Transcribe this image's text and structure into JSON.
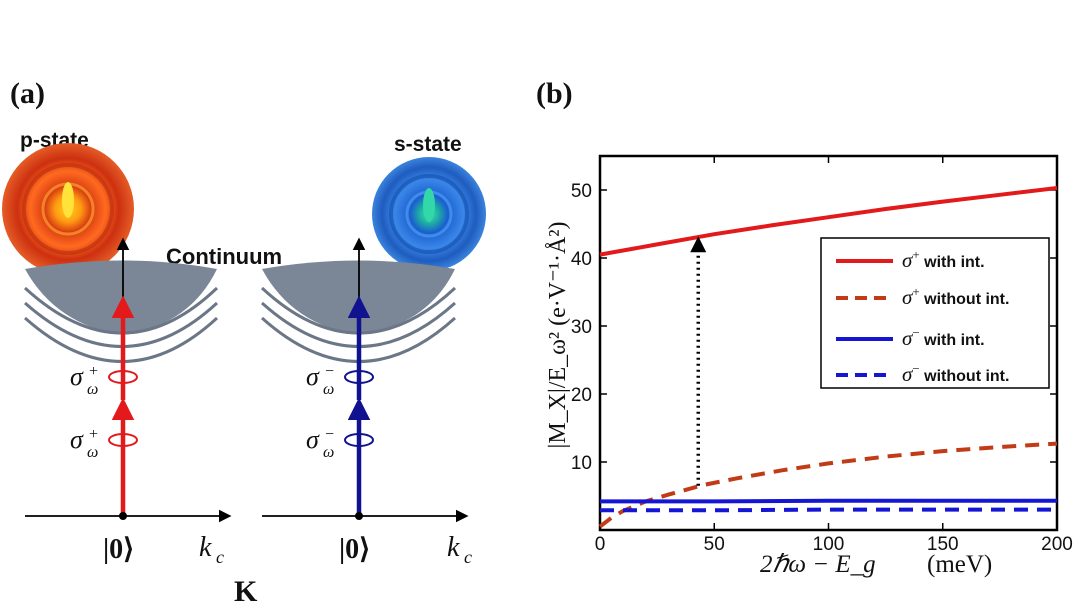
{
  "panel_a": {
    "label": "(a)",
    "p_state_label": "p-state",
    "s_state_label": "s-state",
    "continuum_label": "Continuum",
    "left_ket": "|0⟩",
    "right_ket": "|0⟩",
    "kc_label": "k",
    "kc_sub": "c",
    "valley_label": "K",
    "sigma_plus_upper": "σ",
    "sigma_plus_sup": "+",
    "sigma_omega_sub": "ω",
    "sigma_minus_sup": "−",
    "colors": {
      "red": "#e3191c",
      "blue": "#10128f",
      "continuum": "#7b8797",
      "pstate": "#e8401a",
      "sstate": "#1f74d6"
    }
  },
  "panel_b": {
    "label": "(b)",
    "ylabel": "|M_X|/E_ω² (e·V⁻¹·Å²)",
    "xlabel_main": "2ℏω − E_g",
    "xlabel_unit": "(meV)"
  },
  "chart_data": {
    "type": "line",
    "xlim": [
      0,
      200
    ],
    "ylim": [
      0,
      55
    ],
    "xticks": [
      "0",
      "50",
      "100",
      "150",
      "200"
    ],
    "yticks": [
      "10",
      "20",
      "30",
      "40",
      "50"
    ],
    "xtick_values": [
      0,
      50,
      100,
      150,
      200
    ],
    "ytick_values": [
      10,
      20,
      30,
      40,
      50
    ],
    "series": [
      {
        "name": "σ⁺ with int.",
        "sign": "+",
        "text": " with int.",
        "style": "solid",
        "color": "#e31a1c",
        "x": [
          0,
          25,
          50,
          75,
          100,
          125,
          150,
          175,
          200
        ],
        "y": [
          40.5,
          42.0,
          43.5,
          44.8,
          46.0,
          47.2,
          48.3,
          49.3,
          50.3
        ]
      },
      {
        "name": "σ⁺ without int.",
        "sign": "+",
        "text": " without int.",
        "style": "dashed",
        "color": "#c23b17",
        "x": [
          0,
          5,
          10,
          20,
          30,
          45,
          60,
          80,
          100,
          125,
          150,
          175,
          200
        ],
        "y": [
          0.5,
          1.8,
          2.8,
          4.2,
          5.2,
          6.6,
          7.6,
          8.8,
          9.8,
          10.8,
          11.6,
          12.2,
          12.7
        ]
      },
      {
        "name": "σ⁻ with int.",
        "sign": "−",
        "text": " with int.",
        "style": "solid",
        "color": "#1515d4",
        "x": [
          0,
          50,
          100,
          150,
          200
        ],
        "y": [
          4.2,
          4.2,
          4.3,
          4.3,
          4.3
        ]
      },
      {
        "name": "σ⁻ without int.",
        "sign": "−",
        "text": " without int.",
        "style": "dashed",
        "color": "#1515d4",
        "x": [
          0,
          50,
          100,
          150,
          200
        ],
        "y": [
          2.9,
          2.9,
          3.0,
          3.0,
          3.0
        ]
      }
    ],
    "annotation": {
      "type": "dotted-arrow",
      "x": 43,
      "from_y": 6.5,
      "to_y": 43.2
    },
    "legend_position": "right"
  }
}
